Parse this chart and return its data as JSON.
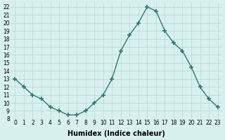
{
  "x": [
    0,
    1,
    2,
    3,
    4,
    5,
    6,
    7,
    8,
    9,
    10,
    11,
    12,
    13,
    14,
    15,
    16,
    17,
    18,
    19,
    20,
    21,
    22,
    23
  ],
  "y": [
    13,
    12,
    11,
    10.5,
    9.5,
    9,
    8.5,
    8.5,
    9,
    10,
    11,
    13,
    16.5,
    18.5,
    20,
    22,
    21.5,
    19,
    17.5,
    16.5,
    14.5,
    12,
    10.5,
    9.5
  ],
  "line_color": "#2d7a6e",
  "marker": "+",
  "marker_size": 4,
  "marker_lw": 1.2,
  "bg_color": "#d8f0ed",
  "grid_color": "#b0d8d4",
  "xlabel": "Humidex (Indice chaleur)",
  "ylim": [
    8,
    22.5
  ],
  "xlim": [
    -0.5,
    23.5
  ],
  "yticks": [
    8,
    9,
    10,
    11,
    12,
    13,
    14,
    15,
    16,
    17,
    18,
    19,
    20,
    21,
    22
  ],
  "xticks": [
    0,
    1,
    2,
    3,
    4,
    5,
    6,
    7,
    8,
    9,
    10,
    11,
    12,
    13,
    14,
    15,
    16,
    17,
    18,
    19,
    20,
    21,
    22,
    23
  ],
  "tick_fontsize": 5.5,
  "label_fontsize": 7
}
